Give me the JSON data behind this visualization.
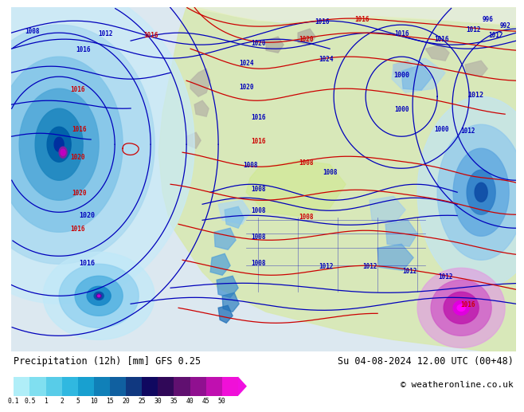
{
  "title_left": "Precipitation (12h) [mm] GFS 0.25",
  "title_right": "Su 04-08-2024 12.00 UTC (00+48)",
  "copyright": "© weatheronline.co.uk",
  "colorbar_levels": [
    "0.1",
    "0.5",
    "1",
    "2",
    "5",
    "10",
    "15",
    "20",
    "25",
    "30",
    "35",
    "40",
    "45",
    "50"
  ],
  "colorbar_colors": [
    "#b0eef8",
    "#80dff0",
    "#58cce8",
    "#30b8e0",
    "#18a0d0",
    "#1080b8",
    "#1060a0",
    "#103880",
    "#100860",
    "#300858",
    "#601070",
    "#901090",
    "#c010b0",
    "#f010d8"
  ],
  "bg_color": "#ffffff",
  "font_color": "#000000",
  "title_fontsize": 8.5,
  "copyright_fontsize": 8,
  "blue_isobar": "#0000bb",
  "red_isobar": "#cc0000",
  "land_color": "#c8c8b0",
  "ocean_color": "#e0eef8",
  "map_green": "#d8e8b0",
  "map_light_green": "#e8f0c8"
}
